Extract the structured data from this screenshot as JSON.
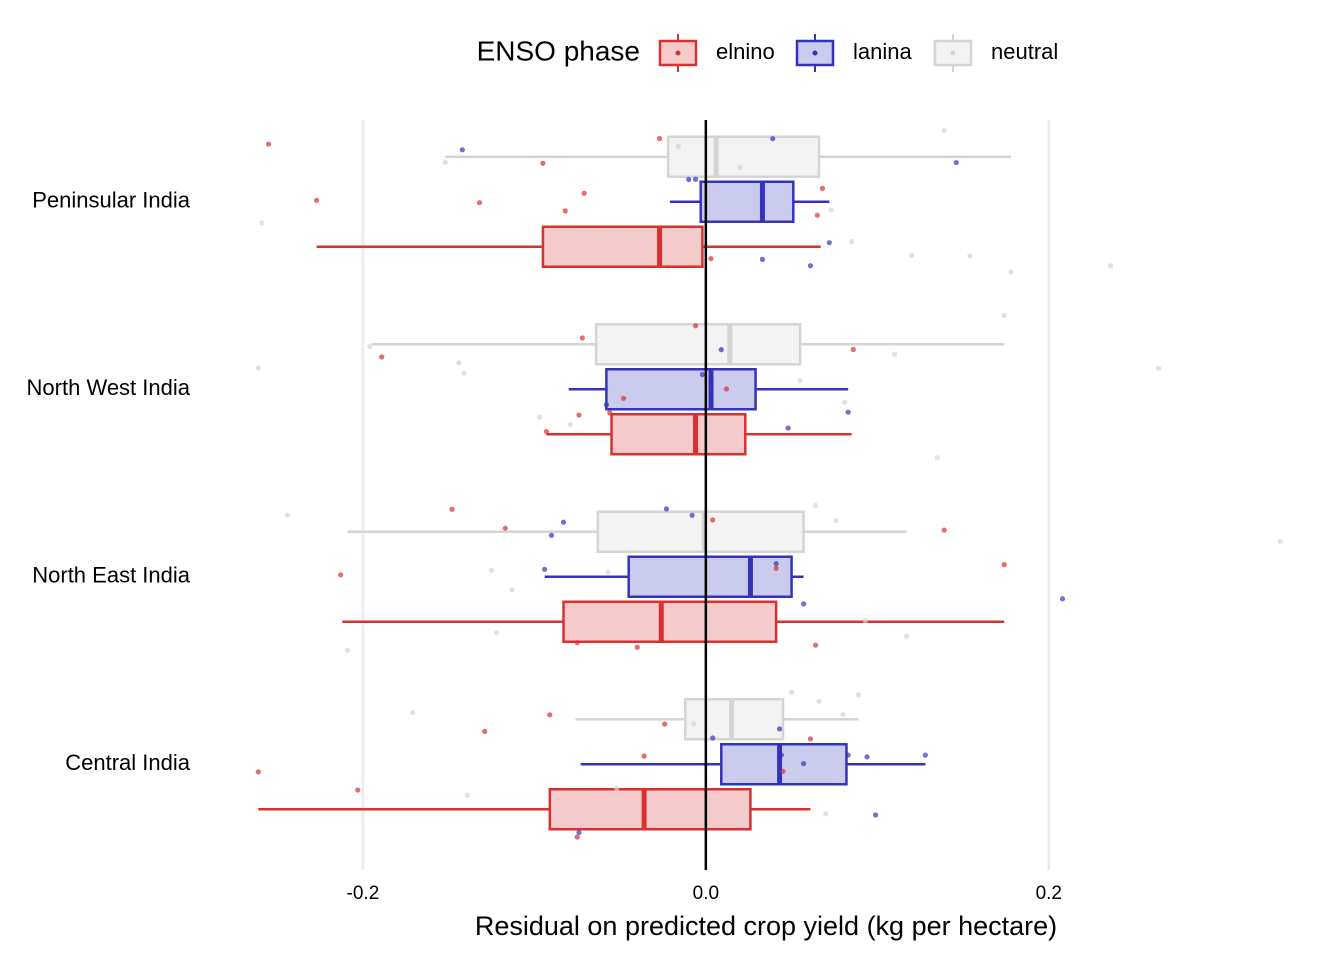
{
  "chart_data": {
    "type": "boxplot",
    "xlabel": "Residual on predicted crop yield (kg per hectare)",
    "legend_title": "ENSO phase",
    "legend_position": "top",
    "categories": [
      "Peninsular India",
      "North West India",
      "North East India",
      "Central India"
    ],
    "xlim": [
      -0.295,
      0.35
    ],
    "xticks": [
      -0.2,
      {
        "value": 0,
        "label": "0.0"
      },
      0.2
    ],
    "grid": true,
    "vline": 0,
    "series": [
      {
        "name": "elnino",
        "color": "#d93030",
        "fill": "#f5caca",
        "boxes": [
          {
            "low": -0.227,
            "q1": -0.095,
            "median": -0.027,
            "q3": -0.002,
            "high": 0.067
          },
          {
            "low": -0.093,
            "q1": -0.055,
            "median": -0.006,
            "q3": 0.023,
            "high": 0.085
          },
          {
            "low": -0.212,
            "q1": -0.083,
            "median": -0.026,
            "q3": 0.041,
            "high": 0.174
          },
          {
            "low": -0.261,
            "q1": -0.091,
            "median": -0.036,
            "q3": 0.026,
            "high": 0.061
          }
        ],
        "points": [
          [
            -0.227,
            -0.082,
            -0.255,
            -0.095,
            -0.071,
            -0.132,
            -0.027,
            0.003,
            0.065,
            0.068
          ],
          [
            -0.189,
            -0.093,
            -0.056,
            -0.006,
            0.012,
            0.086,
            -0.074,
            -0.072,
            -0.048
          ],
          [
            -0.213,
            -0.117,
            -0.148,
            -0.075,
            -0.04,
            0.004,
            0.041,
            0.064,
            0.139,
            0.174
          ],
          [
            -0.261,
            -0.203,
            -0.129,
            -0.091,
            -0.075,
            -0.036,
            -0.024,
            0.045,
            0.061
          ]
        ]
      },
      {
        "name": "lanina",
        "color": "#3333bb",
        "fill": "#cbcbee",
        "boxes": [
          {
            "low": -0.021,
            "q1": -0.003,
            "median": 0.033,
            "q3": 0.051,
            "high": 0.072
          },
          {
            "low": -0.08,
            "q1": -0.058,
            "median": 0.003,
            "q3": 0.029,
            "high": 0.083
          },
          {
            "low": -0.094,
            "q1": -0.045,
            "median": 0.026,
            "q3": 0.05,
            "high": 0.057
          },
          {
            "low": -0.073,
            "q1": 0.009,
            "median": 0.043,
            "q3": 0.082,
            "high": 0.128
          }
        ],
        "points": [
          [
            -0.142,
            0.072,
            -0.01,
            -0.006,
            0.039,
            0.061,
            0.146,
            0.033
          ],
          [
            0.003,
            0.009,
            -0.058,
            -0.002,
            0.048,
            0.083
          ],
          [
            -0.083,
            -0.09,
            -0.094,
            -0.008,
            -0.023,
            0.041,
            0.057,
            0.208
          ],
          [
            -0.074,
            0.004,
            0.044,
            0.057,
            0.083,
            0.099,
            0.094,
            0.128,
            0.043
          ]
        ]
      },
      {
        "name": "neutral",
        "color": "#d4d4d4",
        "fill": "#f3f3f3",
        "boxes": [
          {
            "low": -0.152,
            "q1": -0.022,
            "median": 0.006,
            "q3": 0.066,
            "high": 0.178
          },
          {
            "low": -0.195,
            "q1": -0.064,
            "median": 0.014,
            "q3": 0.055,
            "high": 0.174
          },
          {
            "low": -0.209,
            "q1": -0.063,
            "median": -0.001,
            "q3": 0.057,
            "high": 0.117
          },
          {
            "low": -0.076,
            "q1": -0.012,
            "median": 0.015,
            "q3": 0.045,
            "high": 0.089
          }
        ],
        "points": [
          [
            -0.152,
            -0.061,
            -0.016,
            0.02,
            0.085,
            0.12,
            0.178,
            0.236,
            0.154,
            -0.043,
            -0.259,
            0.073,
            0.139
          ],
          [
            -0.144,
            -0.261,
            -0.196,
            -0.141,
            -0.097,
            -0.079,
            0.11,
            0.135,
            0.174,
            0.264,
            0.081,
            0.055
          ],
          [
            -0.244,
            -0.209,
            -0.125,
            -0.122,
            -0.113,
            -0.057,
            0.076,
            0.093,
            0.117,
            0.335,
            0.064
          ],
          [
            -0.171,
            -0.139,
            -0.076,
            -0.052,
            -0.029,
            -0.007,
            0.07,
            0.08,
            0.089,
            0.066,
            0.05
          ]
        ]
      }
    ]
  }
}
